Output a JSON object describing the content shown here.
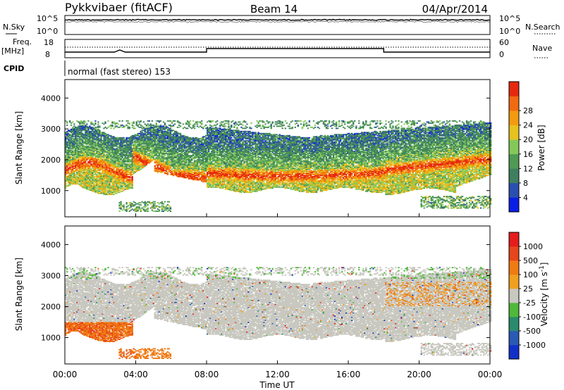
{
  "header": {
    "radar": "Pykkvibaer (fitACF)",
    "beam": "Beam 14",
    "date": "04/Apr/2014"
  },
  "top_panels": {
    "nsky_label": "N.Sky",
    "nsky_ticks": [
      "10^5",
      "10^0"
    ],
    "nsearch_label": "N.Search",
    "nsearch_ticks": [
      "10^5",
      "10^0"
    ],
    "freq_label": "Freq.",
    "freq_unit": "[MHz]",
    "freq_ticks": [
      "18",
      "8"
    ],
    "nave_label": "Nave",
    "nave_ticks": [
      "60",
      "0"
    ],
    "cpid_label": "CPID",
    "cpid_text": "normal (fast stereo) 153"
  },
  "colors": {
    "power_scale": [
      "#0a1ee6",
      "#2b4fb0",
      "#3f7f5f",
      "#4f9a55",
      "#84c85a",
      "#e6c21e",
      "#f39a10",
      "#f06a12",
      "#e6290e"
    ],
    "velocity_scale": [
      "#1230c8",
      "#2a5ab4",
      "#2a8a6e",
      "#50b83a",
      "#c8c8c0",
      "#f0a020",
      "#f07a14",
      "#e6461c",
      "#e61c1c"
    ]
  },
  "chart_data": [
    {
      "type": "heatmap",
      "name": "power",
      "ylabel": "Slant Range [km]",
      "yticks": [
        1000,
        2000,
        3000,
        4000
      ],
      "ylim": [
        150,
        4600
      ],
      "xlim": [
        0,
        24
      ],
      "colorbar_label": "Power [dB]",
      "colorbar_ticks": [
        4,
        8,
        12,
        16,
        20,
        24,
        28
      ]
    },
    {
      "type": "heatmap",
      "name": "velocity",
      "ylabel": "Slant Range [km]",
      "yticks": [
        1000,
        2000,
        3000,
        4000
      ],
      "ylim": [
        150,
        4600
      ],
      "xlim": [
        0,
        24
      ],
      "xlabel": "Time UT",
      "xticks": [
        "00:00",
        "04:00",
        "08:00",
        "12:00",
        "16:00",
        "20:00",
        "00:00"
      ],
      "colorbar_label": "Velocity [m s^-1]",
      "colorbar_ticks": [
        "1000",
        "500",
        "100",
        "25",
        "-25",
        "-100",
        "-500",
        "-1000"
      ]
    }
  ]
}
